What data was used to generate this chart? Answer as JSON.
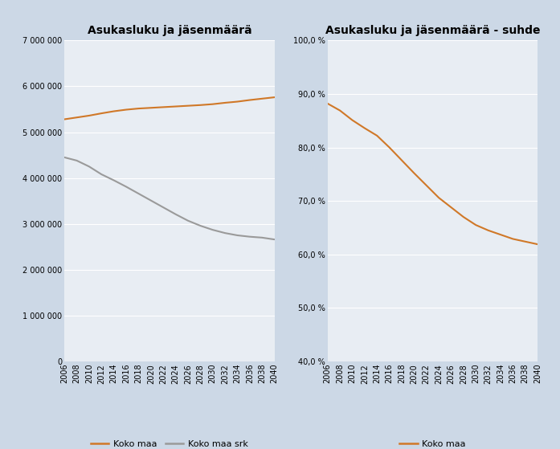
{
  "title1": "Asukasluku ja jäsenmäärä",
  "title2": "Asukasluku ja jäsenmäärä - suhde",
  "years": [
    2006,
    2008,
    2010,
    2012,
    2014,
    2016,
    2018,
    2020,
    2022,
    2024,
    2026,
    2028,
    2030,
    2032,
    2034,
    2036,
    2038,
    2040
  ],
  "koko_maa": [
    5280000,
    5320000,
    5360000,
    5410000,
    5455000,
    5490000,
    5515000,
    5530000,
    5545000,
    5560000,
    5575000,
    5590000,
    5610000,
    5640000,
    5665000,
    5700000,
    5730000,
    5760000
  ],
  "koko_maa_srk": [
    4450000,
    4380000,
    4250000,
    4080000,
    3950000,
    3810000,
    3660000,
    3510000,
    3360000,
    3210000,
    3070000,
    2960000,
    2870000,
    2800000,
    2750000,
    2720000,
    2700000,
    2660000
  ],
  "suhde": [
    0.882,
    0.869,
    0.851,
    0.836,
    0.822,
    0.8,
    0.776,
    0.752,
    0.729,
    0.706,
    0.688,
    0.67,
    0.655,
    0.645,
    0.637,
    0.629,
    0.624,
    0.619
  ],
  "color_orange": "#d07828",
  "color_gray": "#9a9a9a",
  "bg_color": "#ccd8e6",
  "plot_bg": "#e8edf3",
  "ylim1": [
    0,
    7000000
  ],
  "ylim2": [
    0.4,
    1.0
  ],
  "yticks1": [
    0,
    1000000,
    2000000,
    3000000,
    4000000,
    5000000,
    6000000,
    7000000
  ],
  "yticks1_labels": [
    "0",
    "1 000 000",
    "2 000 000",
    "3 000 000",
    "4 000 000",
    "5 000 000",
    "6 000 000",
    "7 000 000"
  ],
  "yticks2": [
    0.4,
    0.5,
    0.6,
    0.7,
    0.8,
    0.9,
    1.0
  ],
  "yticks2_labels": [
    "40,0 %",
    "50,0 %",
    "60,0 %",
    "70,0 %",
    "80,0 %",
    "90,0 %",
    "100,0 %"
  ],
  "legend1_labels": [
    "Koko maa",
    "Koko maa srk"
  ],
  "legend2_labels": [
    "Koko maa"
  ],
  "title_fontsize": 10,
  "tick_fontsize": 7,
  "legend_fontsize": 8
}
